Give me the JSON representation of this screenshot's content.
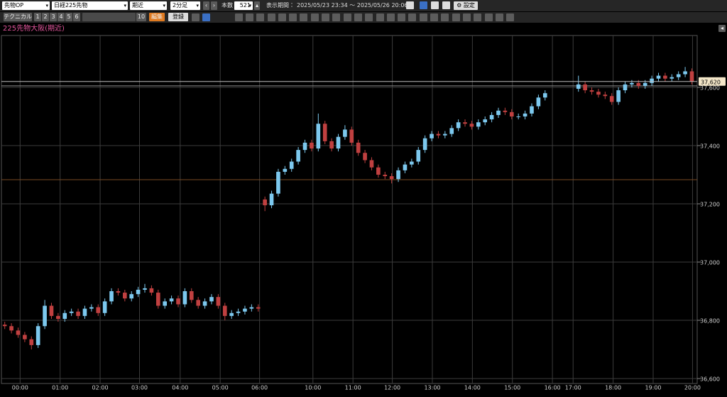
{
  "toolbar": {
    "row1": {
      "market": "先物OP",
      "symbol": "日経225先物",
      "contract": "期近",
      "interval": "2分足",
      "count_label": "本数",
      "count": 521,
      "period_label": "表示期間：",
      "period": "2025/05/23 23:34 〜 2025/05/26 20:06",
      "settings": "設定"
    },
    "row2": {
      "technical": "テクニカル",
      "presets": [
        "1",
        "2",
        "3",
        "4",
        "5",
        "6"
      ],
      "preset_10": "10",
      "edit": "編集",
      "register": "登録"
    }
  },
  "chart_data": {
    "type": "candlestick",
    "title": "225先物大阪(期近)",
    "open": [
      36785,
      36780,
      36765,
      36750,
      36735,
      36715,
      36780,
      36850,
      36815,
      36805,
      36825,
      36830,
      36815,
      36840,
      36845,
      36825,
      36865,
      36900,
      36895,
      36875,
      36890,
      36905,
      36910,
      36895,
      36850,
      36865,
      36875,
      36855,
      36900,
      36870,
      36850,
      36865,
      36880,
      36850,
      36815,
      36825,
      36830,
      36840,
      36845,
      37215,
      37195,
      37235,
      37310,
      37320,
      37345,
      37385,
      37410,
      37390,
      37475,
      37415,
      37390,
      37430,
      37455,
      37410,
      37375,
      37350,
      37325,
      37300,
      37295,
      37285,
      37315,
      37335,
      37345,
      37385,
      37425,
      37440,
      37435,
      37440,
      37460,
      37480,
      37475,
      37465,
      37480,
      37490,
      37505,
      37520,
      37515,
      37500,
      37500,
      37510,
      37535,
      37565,
      null,
      null,
      null,
      null,
      37595,
      37610,
      37590,
      37585,
      37575,
      37570,
      37550,
      37590,
      37610,
      37615,
      37605,
      37615,
      37630,
      37640,
      37630,
      37635,
      37645,
      37655
    ],
    "high": [
      36795,
      36790,
      36775,
      36760,
      36745,
      36790,
      36870,
      36860,
      36825,
      36835,
      36840,
      36840,
      36850,
      36855,
      36855,
      36875,
      36910,
      36910,
      36905,
      36900,
      36915,
      36925,
      36920,
      36905,
      36875,
      36885,
      36885,
      36910,
      36910,
      36880,
      36875,
      36890,
      36890,
      36860,
      36835,
      36840,
      36850,
      36855,
      36855,
      37225,
      37245,
      37320,
      37330,
      37355,
      37395,
      37420,
      37420,
      37510,
      37485,
      37425,
      37440,
      37470,
      37465,
      37420,
      37385,
      37360,
      37335,
      37310,
      37305,
      37325,
      37345,
      37355,
      37395,
      37435,
      37450,
      37450,
      37450,
      37470,
      37490,
      37490,
      37485,
      37490,
      37500,
      37515,
      37530,
      37530,
      37525,
      37510,
      37520,
      37545,
      37575,
      37590,
      null,
      null,
      null,
      null,
      37640,
      37620,
      37600,
      37595,
      37585,
      37580,
      37600,
      37620,
      37625,
      37625,
      37625,
      37640,
      37650,
      37650,
      37645,
      37655,
      37670,
      37665
    ],
    "low": [
      36770,
      36755,
      36740,
      36725,
      36700,
      36705,
      36770,
      36805,
      36795,
      36795,
      36815,
      36805,
      36805,
      36830,
      36815,
      36815,
      36855,
      36885,
      36865,
      36865,
      36880,
      36895,
      36885,
      36840,
      36840,
      36855,
      36845,
      36845,
      36860,
      36840,
      36840,
      36855,
      36840,
      36800,
      36805,
      36815,
      36820,
      36830,
      36830,
      37175,
      37185,
      37225,
      37300,
      37310,
      37335,
      37375,
      37380,
      37380,
      37405,
      37380,
      37380,
      37420,
      37400,
      37365,
      37340,
      37315,
      37290,
      37285,
      37270,
      37275,
      37305,
      37325,
      37335,
      37375,
      37415,
      37425,
      37425,
      37430,
      37450,
      37465,
      37455,
      37455,
      37470,
      37480,
      37495,
      37505,
      37490,
      37490,
      37490,
      37500,
      37525,
      37555,
      null,
      null,
      null,
      null,
      37585,
      37580,
      37575,
      37565,
      37560,
      37540,
      37540,
      37580,
      37600,
      37595,
      37595,
      37605,
      37620,
      37620,
      37620,
      37625,
      37635,
      37610
    ],
    "close": [
      36780,
      36765,
      36750,
      36735,
      36715,
      36780,
      36850,
      36815,
      36805,
      36825,
      36830,
      36815,
      36840,
      36845,
      36825,
      36865,
      36900,
      36895,
      36875,
      36890,
      36905,
      36910,
      36895,
      36850,
      36865,
      36875,
      36855,
      36900,
      36870,
      36850,
      36865,
      36880,
      36850,
      36815,
      36825,
      36830,
      36840,
      36845,
      36840,
      37195,
      37235,
      37310,
      37320,
      37345,
      37385,
      37410,
      37390,
      37475,
      37415,
      37390,
      37430,
      37455,
      37410,
      37375,
      37350,
      37325,
      37300,
      37295,
      37285,
      37315,
      37335,
      37345,
      37385,
      37425,
      37440,
      37435,
      37440,
      37460,
      37480,
      37475,
      37465,
      37480,
      37490,
      37505,
      37520,
      37515,
      37500,
      37500,
      37510,
      37535,
      37565,
      37580,
      null,
      null,
      null,
      null,
      37610,
      37590,
      37585,
      37575,
      37570,
      37550,
      37590,
      37610,
      37615,
      37605,
      37615,
      37630,
      37640,
      37630,
      37635,
      37645,
      37655,
      37620
    ],
    "up_color": "#7cc8ee",
    "down_color": "#c04040",
    "xlim": [
      0,
      104.3
    ],
    "xticks": [
      {
        "value": 2.8,
        "label": "00:00"
      },
      {
        "value": 8.8,
        "label": "01:00"
      },
      {
        "value": 14.8,
        "label": "02:00"
      },
      {
        "value": 20.7,
        "label": "03:00"
      },
      {
        "value": 26.8,
        "label": "04:00"
      },
      {
        "value": 32.8,
        "label": "05:00"
      },
      {
        "value": 38.7,
        "label": "06:00"
      },
      {
        "value": 46.7,
        "label": "10:00"
      },
      {
        "value": 52.7,
        "label": "11:00"
      },
      {
        "value": 58.6,
        "label": "12:00"
      },
      {
        "value": 64.6,
        "label": "13:00"
      },
      {
        "value": 70.6,
        "label": "14:00"
      },
      {
        "value": 76.6,
        "label": "15:00"
      },
      {
        "value": 82.6,
        "label": "16:00"
      },
      {
        "value": 85.7,
        "label": "17:00"
      },
      {
        "value": 91.7,
        "label": "18:00"
      },
      {
        "value": 97.7,
        "label": "19:00"
      },
      {
        "value": 103.6,
        "label": "20:00"
      }
    ],
    "ylim": [
      36583,
      37778
    ],
    "yticks": [
      {
        "value": 36600,
        "label": "36,600"
      },
      {
        "value": 36800,
        "label": "36,800"
      },
      {
        "value": 37000,
        "label": "37,000"
      },
      {
        "value": 37200,
        "label": "37,200"
      },
      {
        "value": 37400,
        "label": "37,400"
      },
      {
        "value": 37600,
        "label": "37,600"
      }
    ],
    "grid": true,
    "reference_lines": [
      {
        "value": 37605,
        "color": "#8a8a8a"
      },
      {
        "value": 37283,
        "color": "#7a4a22"
      }
    ],
    "last_price": {
      "value": 37620,
      "label": "37,620",
      "color": "#bdbdbd"
    }
  }
}
